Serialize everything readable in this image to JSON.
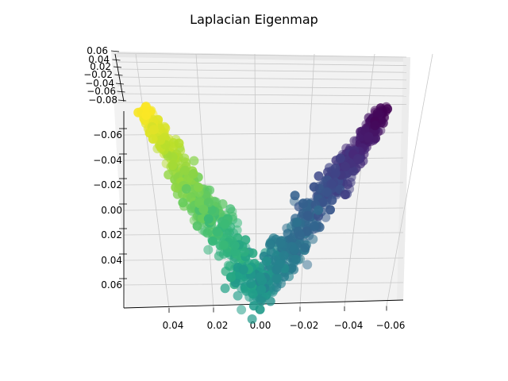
{
  "chart_data": {
    "type": "scatter",
    "projection": "3d",
    "title": "Laplacian Eigenmap",
    "xlabel": "",
    "ylabel": "",
    "zlabel": "",
    "colormap": "viridis",
    "grid": true,
    "marker_alpha": 0.6,
    "pane_color": "#f2f2f2",
    "x_ticks": [
      "0.04",
      "0.02",
      "0.00",
      "−0.02",
      "−0.04",
      "−0.06"
    ],
    "z_ticks": [
      "−0.06",
      "−0.04",
      "−0.02",
      "0.00",
      "0.02",
      "0.04",
      "0.06"
    ],
    "y_ticks": [
      "0.06",
      "0.04",
      "0.02",
      "−0.02",
      "−0.04",
      "−0.06",
      "−0.08"
    ],
    "xlim": [
      0.06,
      -0.065
    ],
    "zlim": [
      -0.07,
      0.07
    ],
    "ylim": [
      0.06,
      -0.08
    ],
    "points": {
      "n": 900,
      "x_range": [
        0.055,
        -0.06
      ],
      "t_range": [
        0,
        1
      ],
      "profile": "V-shaped arc: t = 0 (yellow) at x = 0.055, z = -0.08 (left end); bottom near x = 0.00, z = 0.065; t = 1 (dark purple) at x = -0.06, z = -0.08 (right end)"
    }
  }
}
